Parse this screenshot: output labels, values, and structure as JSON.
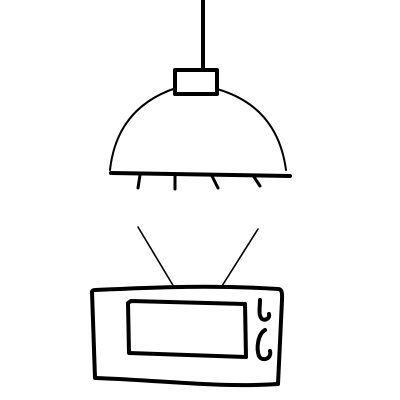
{
  "colors": {
    "background": "#ffffff",
    "ink": "#000000"
  },
  "icons": {
    "lamp": "pendant-lamp-icon",
    "microwave": "microwave-icon"
  }
}
